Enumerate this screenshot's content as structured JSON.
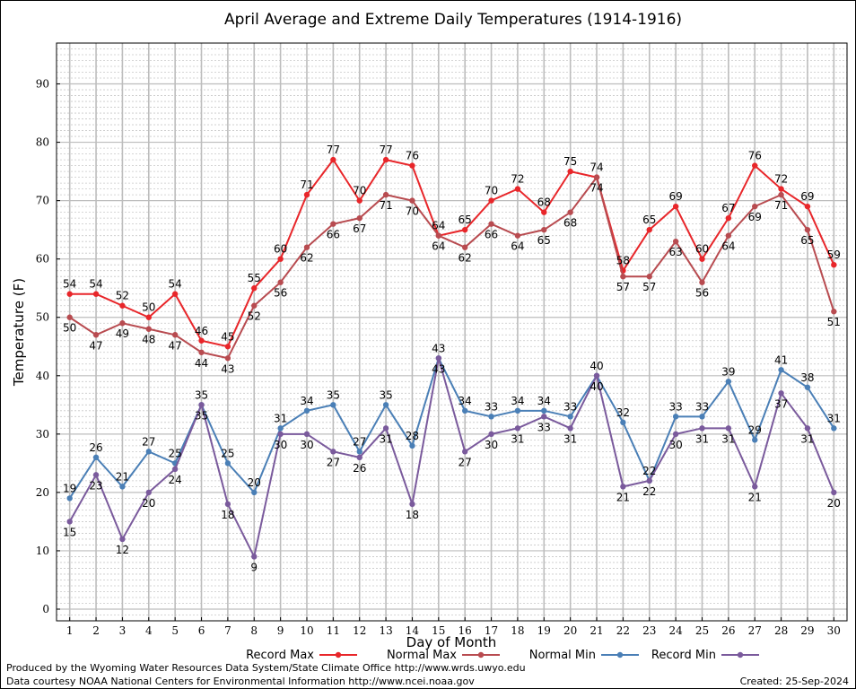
{
  "footer": {
    "produced_by": "Produced by the Wyoming Water Resources Data System/State Climate Office http://www.wrds.uwyo.edu",
    "data_courtesy": "Data courtesy NOAA National Centers for Environmental Information http://www.ncei.noaa.gov",
    "created": "Created:  25-Sep-2024"
  },
  "chart_data": {
    "type": "line",
    "title": "April Average and Extreme Daily Temperatures (1914-1916)",
    "xlabel": "Day of Month",
    "ylabel": "Temperature (F)",
    "xlim": [
      0.5,
      30.5
    ],
    "ylim": [
      -2,
      97
    ],
    "yticks": [
      0,
      10,
      20,
      30,
      40,
      50,
      60,
      70,
      80,
      90
    ],
    "x": [
      1,
      2,
      3,
      4,
      5,
      6,
      7,
      8,
      9,
      10,
      11,
      12,
      13,
      14,
      15,
      16,
      17,
      18,
      19,
      20,
      21,
      22,
      23,
      24,
      25,
      26,
      27,
      28,
      29,
      30
    ],
    "grid": true,
    "legend_position": "bottom",
    "series": [
      {
        "name": "Record Max",
        "color": "#e8262a",
        "values": [
          54,
          54,
          52,
          50,
          54,
          46,
          45,
          55,
          60,
          71,
          77,
          70,
          77,
          76,
          64,
          65,
          70,
          72,
          68,
          75,
          74,
          58,
          65,
          69,
          60,
          67,
          76,
          72,
          69,
          59
        ]
      },
      {
        "name": "Normal Max",
        "color": "#b84b50",
        "values": [
          50,
          47,
          49,
          48,
          47,
          44,
          43,
          52,
          56,
          62,
          66,
          67,
          71,
          70,
          64,
          62,
          66,
          64,
          65,
          68,
          74,
          57,
          57,
          63,
          56,
          64,
          69,
          71,
          65,
          51
        ]
      },
      {
        "name": "Normal Min",
        "color": "#4a7fb6",
        "values": [
          19,
          26,
          21,
          27,
          25,
          35,
          25,
          20,
          31,
          34,
          35,
          27,
          35,
          28,
          43,
          34,
          33,
          34,
          34,
          33,
          40,
          32,
          22,
          33,
          33,
          39,
          29,
          41,
          38,
          31
        ]
      },
      {
        "name": "Record Min",
        "color": "#7a5a9c",
        "values": [
          15,
          23,
          12,
          20,
          24,
          35,
          18,
          9,
          30,
          30,
          27,
          26,
          31,
          18,
          43,
          27,
          30,
          31,
          33,
          31,
          40,
          21,
          22,
          30,
          31,
          31,
          21,
          37,
          31,
          20
        ]
      }
    ]
  }
}
